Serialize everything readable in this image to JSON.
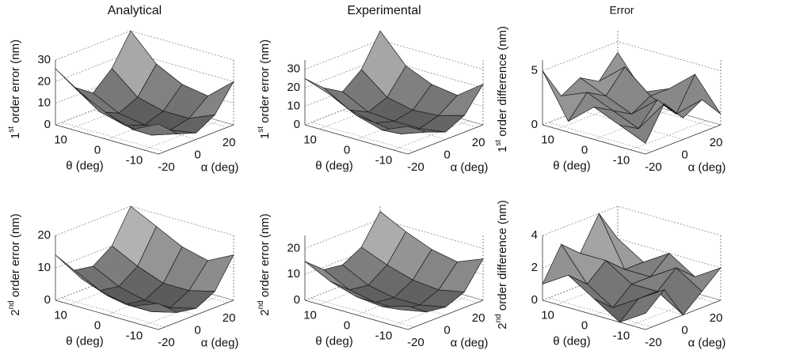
{
  "chart_data": [
    {
      "type": "surface",
      "title": "Analytical",
      "zlabel": {
        "lead": "1",
        "sup": "st",
        "rest": " order error (nm)"
      },
      "xlabel": "α (deg)",
      "ylabel": "θ (deg)",
      "x": [
        -24,
        -12,
        0,
        12,
        24
      ],
      "y": [
        -14,
        -7,
        0,
        7,
        14
      ],
      "xlim": [
        -24,
        24
      ],
      "ylim": [
        -14,
        14
      ],
      "zlim": [
        0,
        30
      ],
      "xticks": [
        -20,
        0,
        20
      ],
      "yticks": [
        -10,
        0,
        10
      ],
      "zticks": [
        0,
        10,
        20,
        30
      ],
      "values": [
        [
          14,
          6,
          3,
          8,
          20
        ],
        [
          8,
          2,
          1,
          3,
          10
        ],
        [
          12,
          3,
          0,
          3,
          12
        ],
        [
          18,
          6,
          2,
          6,
          18
        ],
        [
          26,
          14,
          8,
          16,
          30
        ]
      ]
    },
    {
      "type": "surface",
      "title": "Experimental",
      "zlabel": {
        "lead": "1",
        "sup": "st",
        "rest": " order error (nm)"
      },
      "xlabel": "α (deg)",
      "ylabel": "θ (deg)",
      "x": [
        -24,
        -12,
        0,
        12,
        24
      ],
      "y": [
        -14,
        -7,
        0,
        7,
        14
      ],
      "xlim": [
        -24,
        24
      ],
      "ylim": [
        -14,
        14
      ],
      "zlim": [
        0,
        35
      ],
      "xticks": [
        -20,
        0,
        20
      ],
      "yticks": [
        -10,
        0,
        10
      ],
      "zticks": [
        0,
        10,
        20,
        30
      ],
      "values": [
        [
          15,
          8,
          4,
          9,
          22
        ],
        [
          9,
          3,
          2,
          5,
          12
        ],
        [
          13,
          5,
          2,
          4,
          14
        ],
        [
          20,
          8,
          3,
          7,
          20
        ],
        [
          25,
          16,
          10,
          18,
          35
        ]
      ]
    },
    {
      "type": "surface",
      "title": "Error",
      "zlabel": {
        "lead": "1",
        "sup": "st",
        "rest": " order difference (nm)"
      },
      "xlabel": "α (deg)",
      "ylabel": "θ (deg)",
      "x": [
        -24,
        -12,
        0,
        12,
        24
      ],
      "y": [
        -14,
        -7,
        0,
        7,
        14
      ],
      "xlim": [
        -24,
        24
      ],
      "ylim": [
        -14,
        14
      ],
      "zlim": [
        0,
        6
      ],
      "xticks": [
        -20,
        0,
        20
      ],
      "yticks": [
        -10,
        0,
        10
      ],
      "zticks": [
        0,
        5
      ],
      "values": [
        [
          1,
          4,
          2,
          3,
          1
        ],
        [
          2,
          1,
          3,
          1,
          4
        ],
        [
          3,
          2,
          1,
          2,
          2
        ],
        [
          1,
          3,
          2,
          4,
          1
        ],
        [
          5,
          2,
          3,
          2,
          4
        ]
      ]
    },
    {
      "type": "surface",
      "zlabel": {
        "lead": "2",
        "sup": "nd",
        "rest": " order error (nm)"
      },
      "xlabel": "α (deg)",
      "ylabel": "θ (deg)",
      "x": [
        -24,
        -12,
        0,
        12,
        24
      ],
      "y": [
        -14,
        -7,
        0,
        7,
        14
      ],
      "xlim": [
        -24,
        24
      ],
      "ylim": [
        -14,
        14
      ],
      "zlim": [
        0,
        20
      ],
      "xticks": [
        -20,
        0,
        20
      ],
      "yticks": [
        -10,
        0,
        10
      ],
      "zticks": [
        0,
        10,
        20
      ],
      "values": [
        [
          8,
          3,
          2,
          5,
          14
        ],
        [
          5,
          1,
          0,
          3,
          10
        ],
        [
          6,
          1,
          0,
          3,
          12
        ],
        [
          9,
          3,
          2,
          6,
          16
        ],
        [
          14,
          7,
          6,
          10,
          20
        ]
      ]
    },
    {
      "type": "surface",
      "zlabel": {
        "lead": "2",
        "sup": "nd",
        "rest": " order error (nm)"
      },
      "xlabel": "α (deg)",
      "ylabel": "θ (deg)",
      "x": [
        -24,
        -12,
        0,
        12,
        24
      ],
      "y": [
        -14,
        -7,
        0,
        7,
        14
      ],
      "xlim": [
        -24,
        24
      ],
      "ylim": [
        -14,
        14
      ],
      "zlim": [
        0,
        25
      ],
      "xticks": [
        -20,
        0,
        20
      ],
      "yticks": [
        -10,
        0,
        10
      ],
      "zticks": [
        0,
        10,
        20
      ],
      "values": [
        [
          9,
          4,
          3,
          6,
          16
        ],
        [
          6,
          2,
          1,
          4,
          12
        ],
        [
          7,
          2,
          1,
          5,
          14
        ],
        [
          10,
          4,
          3,
          8,
          18
        ],
        [
          15,
          9,
          8,
          12,
          23
        ]
      ]
    },
    {
      "type": "surface",
      "zlabel": {
        "lead": "2",
        "sup": "nd",
        "rest": " order difference (nm)"
      },
      "xlabel": "α (deg)",
      "ylabel": "θ (deg)",
      "x": [
        -24,
        -12,
        0,
        12,
        24
      ],
      "y": [
        -14,
        -7,
        0,
        7,
        14
      ],
      "xlim": [
        -24,
        24
      ],
      "ylim": [
        -14,
        14
      ],
      "zlim": [
        0,
        4
      ],
      "xticks": [
        -20,
        0,
        20
      ],
      "yticks": [
        -10,
        0,
        10
      ],
      "zticks": [
        0,
        2,
        4
      ],
      "values": [
        [
          1,
          2,
          0,
          1,
          2
        ],
        [
          0,
          1,
          1,
          2,
          1
        ],
        [
          1,
          0,
          1,
          1,
          2
        ],
        [
          2,
          1,
          2,
          1,
          1
        ],
        [
          1,
          3,
          2,
          4,
          2
        ]
      ]
    }
  ]
}
